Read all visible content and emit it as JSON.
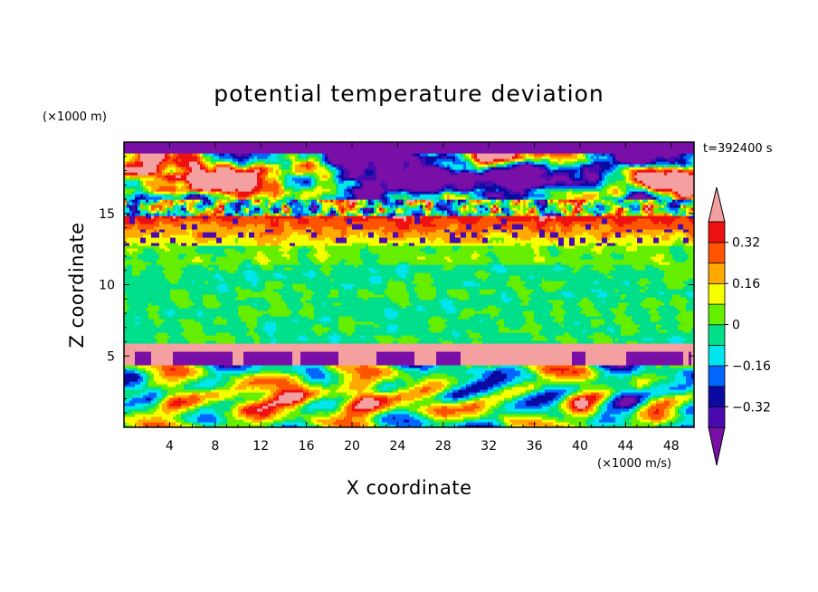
{
  "chart_data": {
    "type": "heatmap",
    "title": "potential temperature deviation",
    "xlabel": "X coordinate",
    "ylabel": "Z coordinate",
    "x_unit": "(×1000 m/s)",
    "y_unit": "(×1000 m)",
    "time_label": "t=392400 s",
    "xlim": [
      0,
      50
    ],
    "ylim": [
      0,
      20
    ],
    "x_ticks": [
      4,
      8,
      12,
      16,
      20,
      24,
      28,
      32,
      36,
      40,
      44,
      48
    ],
    "y_ticks": [
      5,
      10,
      15
    ],
    "colorbar": {
      "levels": [
        -0.4,
        -0.32,
        -0.24,
        -0.16,
        -0.08,
        0,
        0.08,
        0.16,
        0.24,
        0.32,
        0.4
      ],
      "tick_labels": [
        "0.32",
        "0.16",
        "0",
        "−0.16",
        "−0.32"
      ],
      "tick_values": [
        0.32,
        0.16,
        0,
        -0.16,
        -0.32
      ],
      "colors": [
        "#7a0fa8",
        "#4b0ab0",
        "#0a0aa0",
        "#0066ff",
        "#00e5ee",
        "#00e08a",
        "#66ee00",
        "#f5ff00",
        "#ffaa00",
        "#ff5500",
        "#ee1111",
        "#f5a0a0"
      ],
      "extend": "both"
    }
  }
}
